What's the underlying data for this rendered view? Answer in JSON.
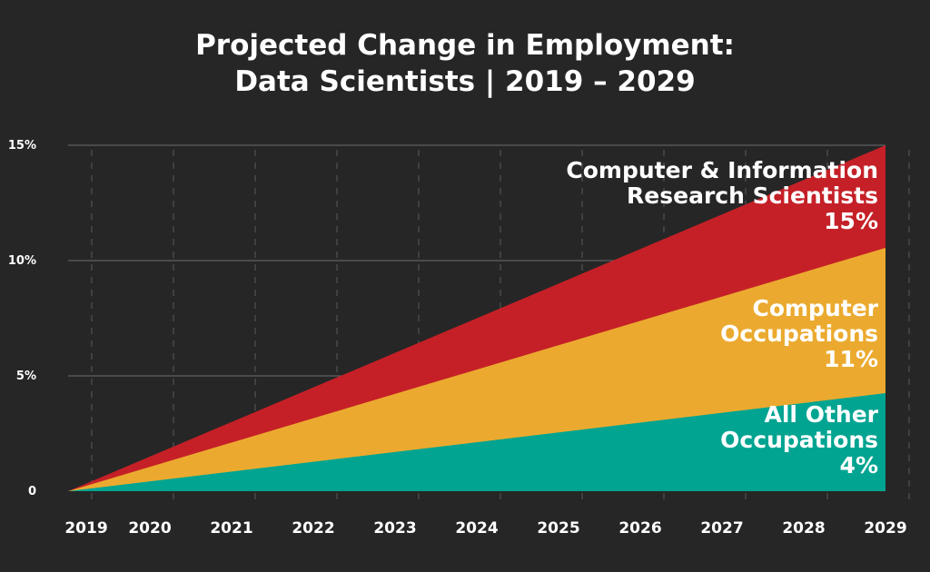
{
  "chart_data": {
    "type": "area",
    "stacked": true,
    "title_lines": [
      "Projected Change in Employment:",
      "Data Scientists | 2019 – 2029"
    ],
    "x": [
      "2019",
      "2020",
      "2021",
      "2022",
      "2023",
      "2024",
      "2025",
      "2026",
      "2027",
      "2028",
      "2029"
    ],
    "yticks": [
      {
        "value": 0,
        "label": "0"
      },
      {
        "value": 5,
        "label": "5%"
      },
      {
        "value": 10,
        "label": "10%"
      },
      {
        "value": 15,
        "label": "15%"
      }
    ],
    "ylim": [
      0,
      15
    ],
    "grid": {
      "horizontal": "solid",
      "vertical": "dashed"
    },
    "series": [
      {
        "key": "all_other",
        "end_value": 4,
        "color": "#00A491",
        "label_lines": [
          "All Other",
          "Occupations",
          "4%"
        ]
      },
      {
        "key": "computer",
        "end_value": 11,
        "color": "#EBAA2F",
        "label_lines": [
          "Computer",
          "Occupations",
          "11%"
        ]
      },
      {
        "key": "cirs",
        "end_value": 15,
        "color": "#C52027",
        "label_lines": [
          "Computer & Information",
          "Research Scientists",
          "15%"
        ]
      }
    ],
    "series_display_top": [
      4.25,
      10.55,
      15
    ]
  }
}
